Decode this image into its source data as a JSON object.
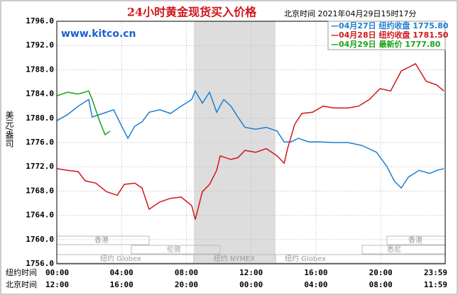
{
  "chart_data": {
    "type": "line",
    "title": "24小时黄金现货买入价格",
    "timestamp": "北京时间  2021年04月29日15时17分",
    "site": "www.kitco.cn",
    "ylabel": "美元/盎司",
    "row_labels": [
      "纽约时间",
      "北京时间"
    ],
    "xlim": [
      0,
      23.983
    ],
    "xticks": [
      {
        "value": 0,
        "label": "00:00"
      },
      {
        "value": 4,
        "label": "04:00"
      },
      {
        "value": 8,
        "label": "08:00"
      },
      {
        "value": 12,
        "label": "12:00"
      },
      {
        "value": 16,
        "label": "16:00"
      },
      {
        "value": 20,
        "label": "20:00"
      },
      {
        "value": 23.983,
        "label": "23:59"
      }
    ],
    "x2_labels": [
      "12:00",
      "16:00",
      "20:00",
      "00:00",
      "04:00",
      "08:00",
      "11:59"
    ],
    "ylim": [
      1756,
      1796
    ],
    "yticks": [
      {
        "value": 1756,
        "label": "1756.0"
      },
      {
        "value": 1760,
        "label": "1760.0"
      },
      {
        "value": 1764,
        "label": "1764.0"
      },
      {
        "value": 1768,
        "label": "1768.0"
      },
      {
        "value": 1772,
        "label": "1772.0"
      },
      {
        "value": 1776,
        "label": "1776.0"
      },
      {
        "value": 1780,
        "label": "1780.0"
      },
      {
        "value": 1784,
        "label": "1784.0"
      },
      {
        "value": 1788,
        "label": "1788.0"
      },
      {
        "value": 1792,
        "label": "1792.0"
      },
      {
        "value": 1796,
        "label": "1796.0"
      }
    ],
    "grid": true,
    "markets": [
      "香港",
      "香港",
      "伦敦",
      "悉尼",
      "纽约 Globex",
      "纽约 NYMEX",
      "纽约 Globex"
    ],
    "series": [
      {
        "name": "—04月27日 纽约收盘 1775.80",
        "color": "#1a7fd4",
        "x": [
          0,
          0.66,
          1.32,
          1.97,
          2.19,
          2.85,
          3.51,
          3.95,
          4.39,
          4.82,
          5.26,
          5.7,
          6.36,
          7.02,
          7.68,
          8.33,
          8.55,
          8.99,
          9.43,
          9.87,
          10.31,
          10.75,
          11.18,
          11.62,
          12.28,
          12.94,
          13.6,
          14.04,
          14.47,
          14.91,
          15.57,
          16.23,
          17.11,
          17.98,
          18.86,
          19.74,
          20.39,
          20.83,
          21.27,
          21.71,
          22.37,
          23.03,
          23.46,
          23.9
        ],
        "values": [
          1779.6,
          1780.6,
          1782,
          1783.1,
          1780.2,
          1780.8,
          1781.4,
          1779,
          1776.7,
          1778.7,
          1779.4,
          1781,
          1781.4,
          1780.8,
          1782,
          1783.1,
          1784.5,
          1782.5,
          1784.3,
          1781,
          1783.1,
          1782,
          1780.2,
          1778.5,
          1778.2,
          1778.5,
          1777.9,
          1776.1,
          1776.1,
          1776.7,
          1776.1,
          1776.1,
          1776,
          1776,
          1775.5,
          1774.4,
          1772,
          1769.7,
          1768.5,
          1770.3,
          1771.4,
          1770.9,
          1771.4,
          1771.7
        ]
      },
      {
        "name": "—04月28日 纽约收盘 1781.50",
        "color": "#d0161b",
        "x": [
          0,
          0.66,
          1.32,
          1.75,
          2.41,
          3.07,
          3.73,
          4.17,
          4.82,
          5.26,
          5.7,
          6.36,
          7.02,
          7.68,
          8.33,
          8.55,
          8.99,
          9.43,
          9.87,
          10.09,
          10.75,
          11.18,
          11.62,
          12.28,
          12.94,
          13.6,
          14.04,
          14.25,
          14.69,
          15.13,
          15.79,
          16.45,
          17.11,
          17.98,
          18.64,
          19.3,
          19.96,
          20.61,
          21.27,
          21.71,
          22.15,
          22.81,
          23.46,
          23.9
        ],
        "values": [
          1771.7,
          1771.4,
          1771.2,
          1769.7,
          1769.3,
          1767.9,
          1767.3,
          1769.1,
          1769.3,
          1768.5,
          1765,
          1766.2,
          1766.8,
          1767,
          1765.6,
          1763.3,
          1767.9,
          1769.1,
          1771.4,
          1773.8,
          1773.2,
          1773.5,
          1774.7,
          1774.4,
          1775,
          1773.8,
          1772.6,
          1775,
          1779,
          1780.8,
          1781,
          1782,
          1781.7,
          1781.7,
          1782,
          1783.1,
          1784.9,
          1784.5,
          1787.8,
          1788.4,
          1789,
          1786.1,
          1785.5,
          1784.5
        ]
      },
      {
        "name": "—04月29日 最新价 1777.80",
        "color": "#1aa31a",
        "x": [
          0,
          0.66,
          1.32,
          1.97,
          2.19,
          2.63,
          2.98,
          3.29
        ],
        "values": [
          1783.7,
          1784.3,
          1784,
          1784.5,
          1783.1,
          1779.6,
          1777.3,
          1777.9
        ]
      }
    ]
  }
}
